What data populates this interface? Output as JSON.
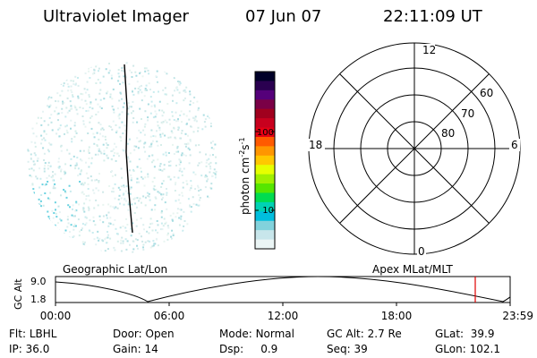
{
  "header": {
    "title": "Ultraviolet Imager",
    "date": "07 Jun 07",
    "time": "22:11:09 UT"
  },
  "colorbar": {
    "label": "photon cm",
    "label_sup1": "-2",
    "label_mid": "s",
    "label_sup2": "-1",
    "ticks": [
      "100",
      "10"
    ],
    "tick_values": [
      100,
      10
    ],
    "colors": [
      "#000028",
      "#2a0050",
      "#55007a",
      "#7a0046",
      "#a0001e",
      "#c8001e",
      "#e60014",
      "#ff5a00",
      "#ff9600",
      "#ffc800",
      "#e6ff00",
      "#a0f000",
      "#55e600",
      "#00dc50",
      "#00d2b4",
      "#00bede",
      "#82d2dc",
      "#c8e6eb",
      "#ebf5f5"
    ]
  },
  "geo_label": "Geographic Lat/Lon",
  "polar": {
    "label": "Apex MLat/MLT",
    "mlt_labels": [
      "12",
      "18",
      "6",
      "0"
    ],
    "lat_labels": [
      "60",
      "70",
      "80"
    ]
  },
  "orbit": {
    "ylabel": "GC Alt",
    "yticks": [
      "9.0",
      "1.8"
    ],
    "xticks": [
      "00:00",
      "06:00",
      "12:00",
      "18:00",
      "23:59"
    ]
  },
  "info": {
    "flt_label": "Flt:",
    "flt": "LBHL",
    "ip_label": "IP:",
    "ip": "36.0",
    "door_label": "Door:",
    "door": "Open",
    "gain_label": "Gain:",
    "gain": "14",
    "mode_label": "Mode:",
    "mode": "Normal",
    "dsp_label": "Dsp:",
    "dsp": "0.9",
    "gcalt_label": "GC Alt:",
    "gcalt": "2.7 Re",
    "seq_label": "Seq:",
    "seq": "39",
    "glat_label": "GLat:",
    "glat": "39.9",
    "glon_label": "GLon:",
    "glon": "102.1"
  }
}
